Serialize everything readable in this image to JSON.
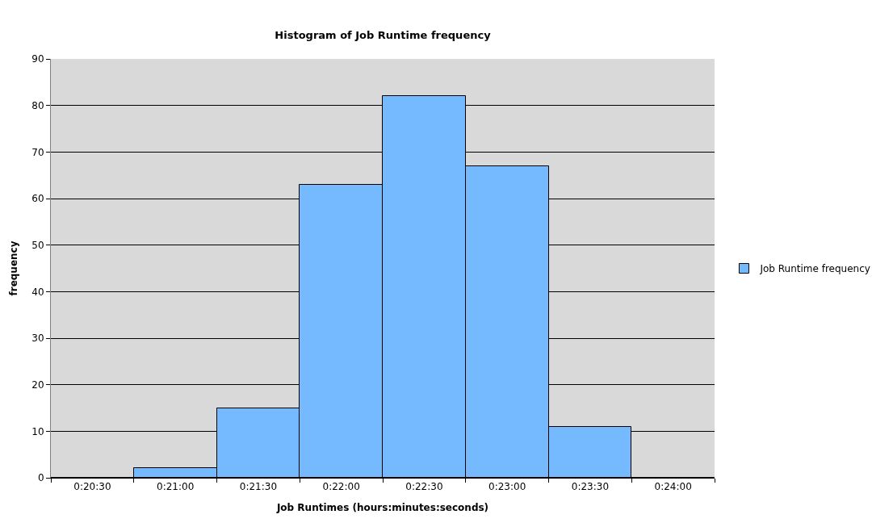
{
  "chart_data": {
    "type": "bar",
    "title": "Histogram of Job Runtime frequency",
    "xlabel": "Job Runtimes (hours:minutes:seconds)",
    "ylabel": "frequency",
    "categories": [
      "0:20:30",
      "0:21:00",
      "0:21:30",
      "0:22:00",
      "0:22:30",
      "0:23:00",
      "0:23:30",
      "0:24:00"
    ],
    "series": [
      {
        "name": "Job Runtime frequency",
        "color": "#75b9ff",
        "values": [
          0,
          2,
          15,
          63,
          82,
          67,
          11,
          0
        ]
      }
    ],
    "ylim": [
      0,
      90
    ],
    "yticks": [
      0,
      10,
      20,
      30,
      40,
      50,
      60,
      70,
      80,
      90
    ],
    "grid": "y",
    "legend": "right"
  }
}
